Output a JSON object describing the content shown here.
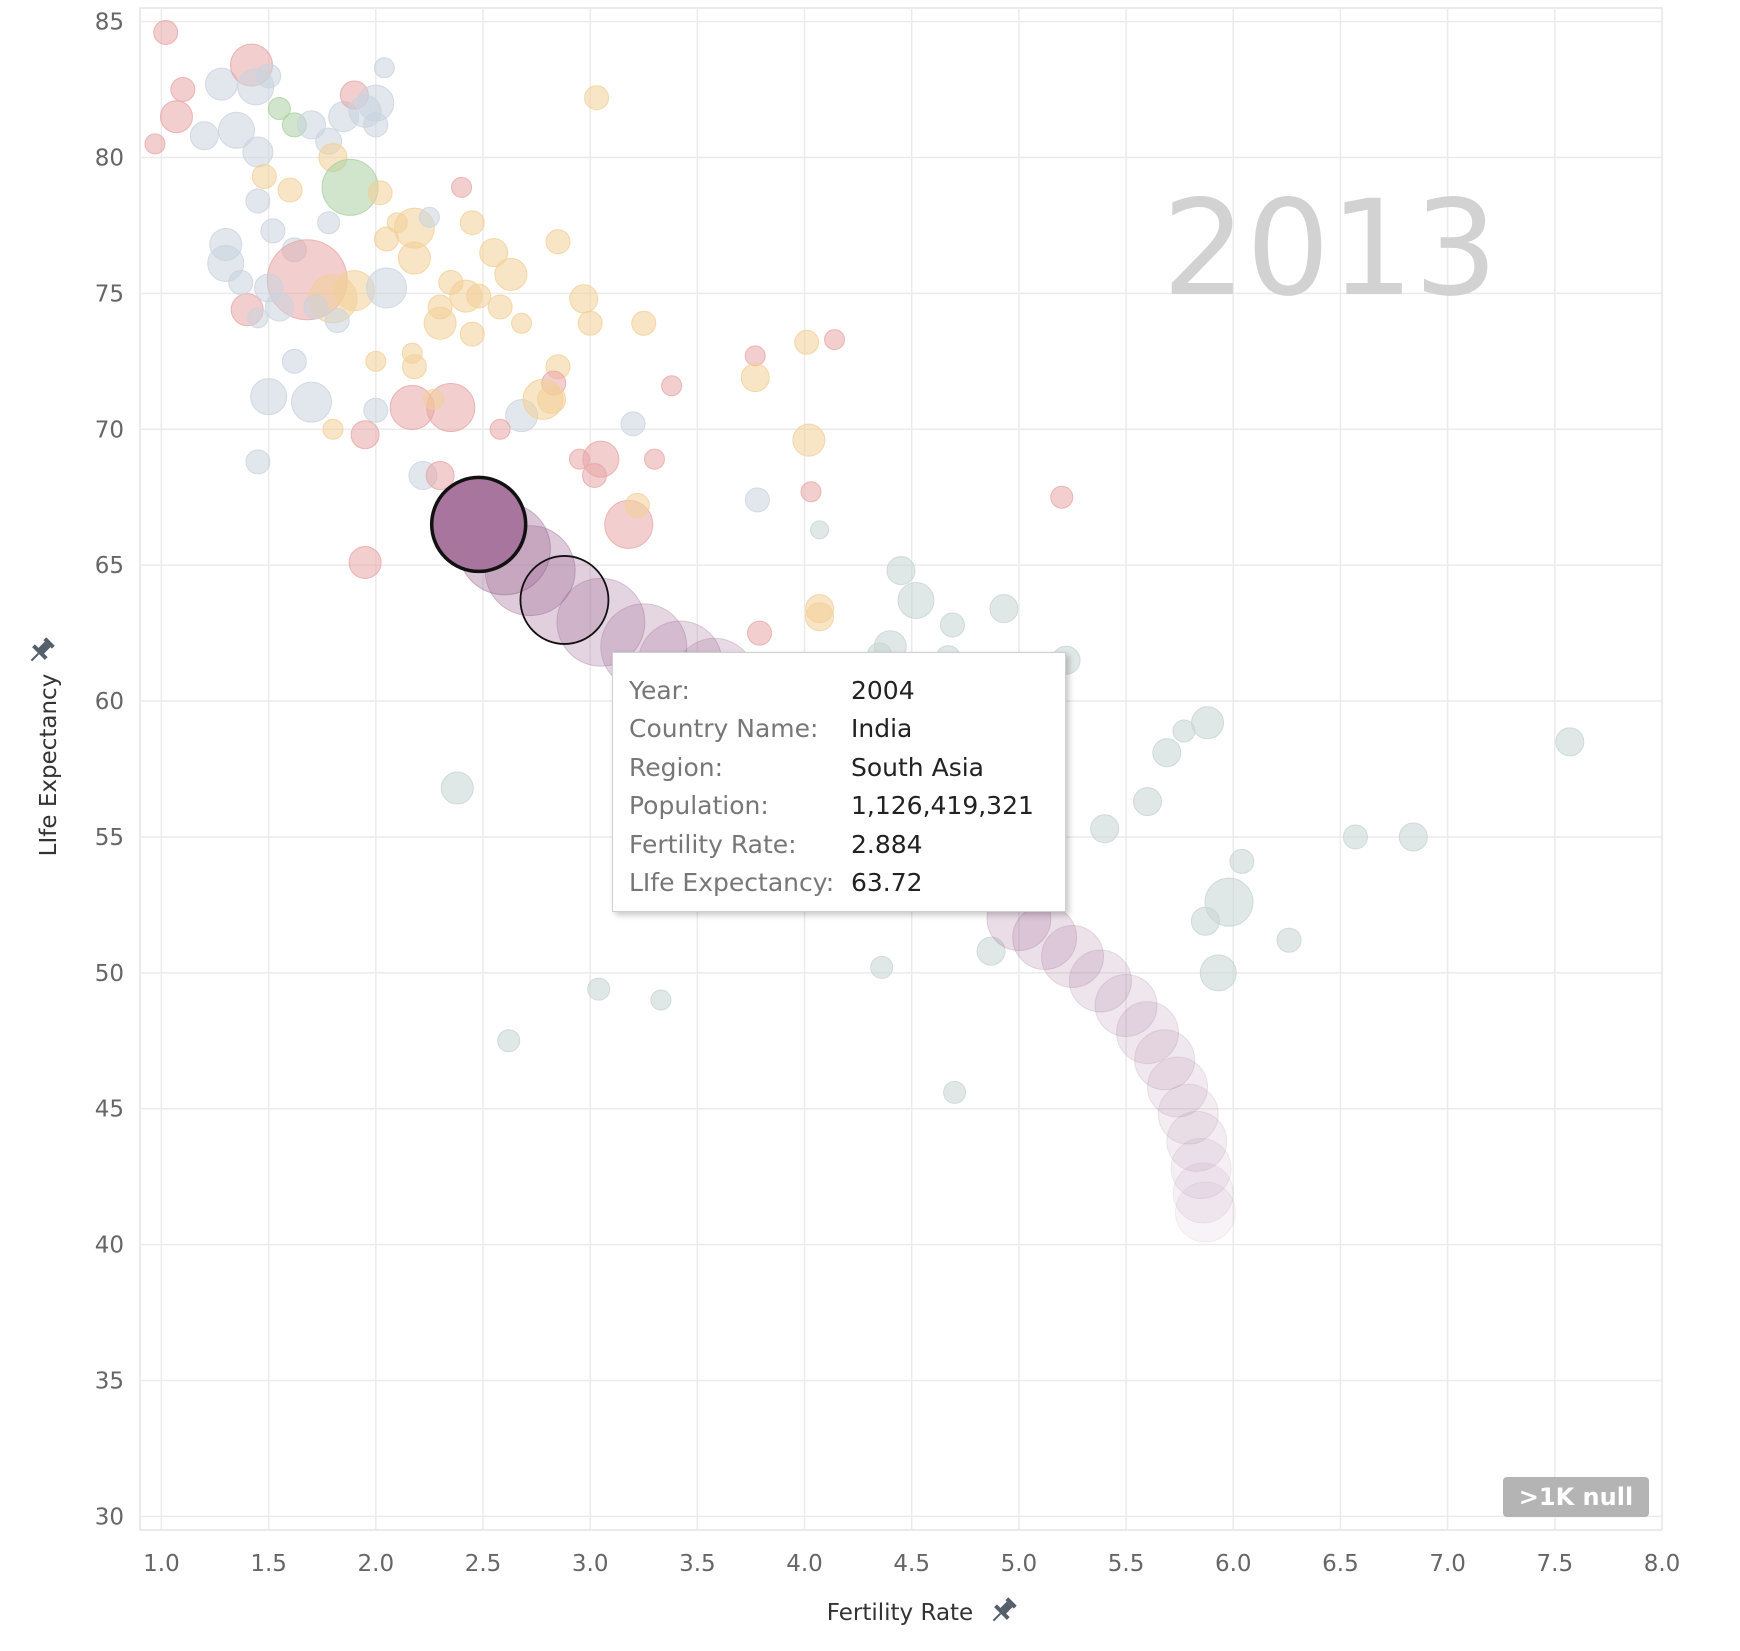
{
  "chart_data": {
    "type": "scatter",
    "title": "",
    "year_label": "2013",
    "xlabel": "Fertility Rate",
    "ylabel": "LIfe Expectancy",
    "xlim": [
      0.9,
      8.0
    ],
    "ylim": [
      29.5,
      85.5
    ],
    "x_ticks": [
      "1.0",
      "1.5",
      "2.0",
      "2.5",
      "3.0",
      "3.5",
      "4.0",
      "4.5",
      "5.0",
      "5.5",
      "6.0",
      "6.5",
      "7.0",
      "7.5",
      "8.0"
    ],
    "y_ticks": [
      "30",
      "35",
      "40",
      "45",
      "50",
      "55",
      "60",
      "65",
      "70",
      "75",
      "80",
      "85"
    ],
    "grid": true,
    "null_badge": ">1K null",
    "pin_icon": "pin-icon",
    "region_colors": {
      "South Asia": "#a8759e",
      "Europe & Central Asia": "#c9d3de",
      "Latin America & Caribbean": "#f2cf97",
      "Middle East & North Africa": "#e8a6a6",
      "Sub-Saharan Africa": "#c6d5d3",
      "East Asia & Pacific": "#c6d5d3",
      "North America": "#a9cfa0"
    },
    "india_trail": {
      "region": "South Asia",
      "points": [
        {
          "x": 2.48,
          "y": 66.5,
          "r": 47,
          "opacity": 1.0
        },
        {
          "x": 2.6,
          "y": 65.6,
          "r": 46,
          "opacity": 0.6
        },
        {
          "x": 2.72,
          "y": 64.8,
          "r": 45,
          "opacity": 0.55
        },
        {
          "x": 2.88,
          "y": 63.72,
          "r": 44,
          "opacity": 0.5
        },
        {
          "x": 3.05,
          "y": 62.9,
          "r": 44,
          "opacity": 0.45
        },
        {
          "x": 3.25,
          "y": 62.0,
          "r": 43,
          "opacity": 0.42
        },
        {
          "x": 3.42,
          "y": 61.4,
          "r": 42,
          "opacity": 0.4
        },
        {
          "x": 3.58,
          "y": 60.8,
          "r": 41,
          "opacity": 0.38
        },
        {
          "x": 5.0,
          "y": 52.0,
          "r": 32,
          "opacity": 0.35
        },
        {
          "x": 5.12,
          "y": 51.3,
          "r": 32,
          "opacity": 0.33
        },
        {
          "x": 5.25,
          "y": 50.6,
          "r": 31,
          "opacity": 0.3
        },
        {
          "x": 5.38,
          "y": 49.7,
          "r": 31,
          "opacity": 0.28
        },
        {
          "x": 5.5,
          "y": 48.8,
          "r": 31,
          "opacity": 0.26
        },
        {
          "x": 5.6,
          "y": 47.8,
          "r": 31,
          "opacity": 0.25
        },
        {
          "x": 5.68,
          "y": 46.8,
          "r": 30,
          "opacity": 0.24
        },
        {
          "x": 5.74,
          "y": 45.8,
          "r": 30,
          "opacity": 0.22
        },
        {
          "x": 5.79,
          "y": 44.8,
          "r": 30,
          "opacity": 0.2
        },
        {
          "x": 5.83,
          "y": 43.8,
          "r": 30,
          "opacity": 0.19
        },
        {
          "x": 5.85,
          "y": 42.8,
          "r": 30,
          "opacity": 0.17
        },
        {
          "x": 5.86,
          "y": 41.9,
          "r": 30,
          "opacity": 0.15
        },
        {
          "x": 5.87,
          "y": 41.2,
          "r": 30,
          "opacity": 0.13
        }
      ]
    },
    "background_points": [
      {
        "x": 1.02,
        "y": 84.6,
        "r": 12,
        "region": "Middle East & North Africa"
      },
      {
        "x": 1.1,
        "y": 82.5,
        "r": 12,
        "region": "Middle East & North Africa"
      },
      {
        "x": 1.28,
        "y": 82.7,
        "r": 16,
        "region": "Europe & Central Asia"
      },
      {
        "x": 1.42,
        "y": 83.4,
        "r": 21,
        "region": "Middle East & North Africa"
      },
      {
        "x": 1.44,
        "y": 82.6,
        "r": 18,
        "region": "Europe & Central Asia"
      },
      {
        "x": 1.5,
        "y": 83.0,
        "r": 12,
        "region": "Europe & Central Asia"
      },
      {
        "x": 1.07,
        "y": 81.5,
        "r": 16,
        "region": "Middle East & North Africa"
      },
      {
        "x": 0.97,
        "y": 80.5,
        "r": 10,
        "region": "Middle East & North Africa"
      },
      {
        "x": 1.2,
        "y": 80.8,
        "r": 14,
        "region": "Europe & Central Asia"
      },
      {
        "x": 1.35,
        "y": 81.0,
        "r": 18,
        "region": "Europe & Central Asia"
      },
      {
        "x": 1.45,
        "y": 80.2,
        "r": 15,
        "region": "Europe & Central Asia"
      },
      {
        "x": 1.55,
        "y": 81.8,
        "r": 11,
        "region": "North America"
      },
      {
        "x": 1.62,
        "y": 81.2,
        "r": 12,
        "region": "North America"
      },
      {
        "x": 1.7,
        "y": 81.2,
        "r": 14,
        "region": "Europe & Central Asia"
      },
      {
        "x": 1.78,
        "y": 80.6,
        "r": 13,
        "region": "Europe & Central Asia"
      },
      {
        "x": 1.85,
        "y": 81.5,
        "r": 15,
        "region": "Europe & Central Asia"
      },
      {
        "x": 1.9,
        "y": 82.3,
        "r": 14,
        "region": "Middle East & North Africa"
      },
      {
        "x": 1.95,
        "y": 81.7,
        "r": 16,
        "region": "Europe & Central Asia"
      },
      {
        "x": 2.0,
        "y": 81.2,
        "r": 12,
        "region": "Europe & Central Asia"
      },
      {
        "x": 2.0,
        "y": 82.0,
        "r": 18,
        "region": "Europe & Central Asia"
      },
      {
        "x": 2.04,
        "y": 83.3,
        "r": 10,
        "region": "Europe & Central Asia"
      },
      {
        "x": 1.48,
        "y": 79.3,
        "r": 12,
        "region": "Latin America & Caribbean"
      },
      {
        "x": 1.6,
        "y": 78.8,
        "r": 12,
        "region": "Latin America & Caribbean"
      },
      {
        "x": 1.8,
        "y": 80.0,
        "r": 14,
        "region": "Latin America & Caribbean"
      },
      {
        "x": 1.88,
        "y": 78.9,
        "r": 28,
        "region": "North America"
      },
      {
        "x": 2.02,
        "y": 78.7,
        "r": 12,
        "region": "Latin America & Caribbean"
      },
      {
        "x": 2.4,
        "y": 78.9,
        "r": 10,
        "region": "Middle East & North Africa"
      },
      {
        "x": 1.45,
        "y": 78.4,
        "r": 12,
        "region": "Europe & Central Asia"
      },
      {
        "x": 1.3,
        "y": 76.8,
        "r": 16,
        "region": "Europe & Central Asia"
      },
      {
        "x": 1.3,
        "y": 76.1,
        "r": 18,
        "region": "Europe & Central Asia"
      },
      {
        "x": 1.52,
        "y": 77.3,
        "r": 12,
        "region": "Europe & Central Asia"
      },
      {
        "x": 1.62,
        "y": 76.6,
        "r": 12,
        "region": "Europe & Central Asia"
      },
      {
        "x": 1.78,
        "y": 77.6,
        "r": 11,
        "region": "Europe & Central Asia"
      },
      {
        "x": 1.68,
        "y": 75.5,
        "r": 40,
        "region": "Middle East & North Africa"
      },
      {
        "x": 1.8,
        "y": 74.8,
        "r": 24,
        "region": "Latin America & Caribbean"
      },
      {
        "x": 1.9,
        "y": 75.1,
        "r": 20,
        "region": "Latin America & Caribbean"
      },
      {
        "x": 2.05,
        "y": 75.2,
        "r": 20,
        "region": "Europe & Central Asia"
      },
      {
        "x": 2.05,
        "y": 77.0,
        "r": 12,
        "region": "Latin America & Caribbean"
      },
      {
        "x": 2.18,
        "y": 77.4,
        "r": 20,
        "region": "Latin America & Caribbean"
      },
      {
        "x": 2.18,
        "y": 76.3,
        "r": 16,
        "region": "Latin America & Caribbean"
      },
      {
        "x": 2.25,
        "y": 77.8,
        "r": 10,
        "region": "Europe & Central Asia"
      },
      {
        "x": 2.45,
        "y": 77.6,
        "r": 12,
        "region": "Latin America & Caribbean"
      },
      {
        "x": 2.1,
        "y": 77.6,
        "r": 10,
        "region": "Latin America & Caribbean"
      },
      {
        "x": 2.35,
        "y": 75.4,
        "r": 12,
        "region": "Latin America & Caribbean"
      },
      {
        "x": 2.42,
        "y": 74.9,
        "r": 16,
        "region": "Latin America & Caribbean"
      },
      {
        "x": 2.55,
        "y": 76.5,
        "r": 14,
        "region": "Latin America & Caribbean"
      },
      {
        "x": 2.63,
        "y": 75.7,
        "r": 16,
        "region": "Latin America & Caribbean"
      },
      {
        "x": 2.85,
        "y": 76.9,
        "r": 12,
        "region": "Latin America & Caribbean"
      },
      {
        "x": 1.4,
        "y": 74.4,
        "r": 16,
        "region": "Middle East & North Africa"
      },
      {
        "x": 1.5,
        "y": 75.2,
        "r": 14,
        "region": "Europe & Central Asia"
      },
      {
        "x": 1.37,
        "y": 75.4,
        "r": 12,
        "region": "Europe & Central Asia"
      },
      {
        "x": 1.55,
        "y": 74.5,
        "r": 14,
        "region": "Europe & Central Asia"
      },
      {
        "x": 1.45,
        "y": 74.1,
        "r": 10,
        "region": "Europe & Central Asia"
      },
      {
        "x": 1.82,
        "y": 74.0,
        "r": 12,
        "region": "Europe & Central Asia"
      },
      {
        "x": 1.72,
        "y": 74.5,
        "r": 12,
        "region": "Europe & Central Asia"
      },
      {
        "x": 2.3,
        "y": 74.5,
        "r": 12,
        "region": "Latin America & Caribbean"
      },
      {
        "x": 2.3,
        "y": 73.9,
        "r": 16,
        "region": "Latin America & Caribbean"
      },
      {
        "x": 2.48,
        "y": 74.9,
        "r": 12,
        "region": "Latin America & Caribbean"
      },
      {
        "x": 2.58,
        "y": 74.5,
        "r": 12,
        "region": "Latin America & Caribbean"
      },
      {
        "x": 2.45,
        "y": 73.5,
        "r": 12,
        "region": "Latin America & Caribbean"
      },
      {
        "x": 2.68,
        "y": 73.9,
        "r": 10,
        "region": "Latin America & Caribbean"
      },
      {
        "x": 2.97,
        "y": 74.8,
        "r": 14,
        "region": "Latin America & Caribbean"
      },
      {
        "x": 3.0,
        "y": 73.9,
        "r": 12,
        "region": "Latin America & Caribbean"
      },
      {
        "x": 3.03,
        "y": 82.2,
        "r": 12,
        "region": "Latin America & Caribbean"
      },
      {
        "x": 3.25,
        "y": 73.9,
        "r": 12,
        "region": "Latin America & Caribbean"
      },
      {
        "x": 1.62,
        "y": 72.5,
        "r": 12,
        "region": "Europe & Central Asia"
      },
      {
        "x": 2.0,
        "y": 72.5,
        "r": 10,
        "region": "Latin America & Caribbean"
      },
      {
        "x": 2.17,
        "y": 72.8,
        "r": 10,
        "region": "Latin America & Caribbean"
      },
      {
        "x": 2.18,
        "y": 72.3,
        "r": 12,
        "region": "Latin America & Caribbean"
      },
      {
        "x": 2.85,
        "y": 72.3,
        "r": 12,
        "region": "Latin America & Caribbean"
      },
      {
        "x": 2.83,
        "y": 71.7,
        "r": 12,
        "region": "Middle East & North Africa"
      },
      {
        "x": 3.77,
        "y": 72.7,
        "r": 10,
        "region": "Middle East & North Africa"
      },
      {
        "x": 3.77,
        "y": 71.9,
        "r": 14,
        "region": "Latin America & Caribbean"
      },
      {
        "x": 4.01,
        "y": 73.2,
        "r": 12,
        "region": "Latin America & Caribbean"
      },
      {
        "x": 4.14,
        "y": 73.3,
        "r": 10,
        "region": "Middle East & North Africa"
      },
      {
        "x": 3.38,
        "y": 71.6,
        "r": 10,
        "region": "Middle East & North Africa"
      },
      {
        "x": 1.5,
        "y": 71.2,
        "r": 18,
        "region": "Europe & Central Asia"
      },
      {
        "x": 1.7,
        "y": 71.0,
        "r": 20,
        "region": "Europe & Central Asia"
      },
      {
        "x": 2.0,
        "y": 70.7,
        "r": 12,
        "region": "Europe & Central Asia"
      },
      {
        "x": 2.17,
        "y": 70.8,
        "r": 22,
        "region": "Middle East & North Africa"
      },
      {
        "x": 2.35,
        "y": 70.8,
        "r": 24,
        "region": "Middle East & North Africa"
      },
      {
        "x": 2.27,
        "y": 71.1,
        "r": 10,
        "region": "Latin America & Caribbean"
      },
      {
        "x": 2.68,
        "y": 70.5,
        "r": 16,
        "region": "Europe & Central Asia"
      },
      {
        "x": 2.78,
        "y": 71.1,
        "r": 20,
        "region": "Latin America & Caribbean"
      },
      {
        "x": 2.82,
        "y": 71.1,
        "r": 14,
        "region": "Latin America & Caribbean"
      },
      {
        "x": 2.58,
        "y": 70.0,
        "r": 10,
        "region": "Middle East & North Africa"
      },
      {
        "x": 1.8,
        "y": 70.0,
        "r": 10,
        "region": "Latin America & Caribbean"
      },
      {
        "x": 1.95,
        "y": 69.8,
        "r": 14,
        "region": "Middle East & North Africa"
      },
      {
        "x": 3.2,
        "y": 70.2,
        "r": 12,
        "region": "Europe & Central Asia"
      },
      {
        "x": 4.02,
        "y": 69.6,
        "r": 16,
        "region": "Latin America & Caribbean"
      },
      {
        "x": 1.45,
        "y": 68.8,
        "r": 12,
        "region": "Europe & Central Asia"
      },
      {
        "x": 2.95,
        "y": 68.9,
        "r": 10,
        "region": "Middle East & North Africa"
      },
      {
        "x": 3.05,
        "y": 68.9,
        "r": 18,
        "region": "Middle East & North Africa"
      },
      {
        "x": 3.02,
        "y": 68.3,
        "r": 12,
        "region": "Middle East & North Africa"
      },
      {
        "x": 3.3,
        "y": 68.9,
        "r": 10,
        "region": "Middle East & North Africa"
      },
      {
        "x": 2.22,
        "y": 68.3,
        "r": 14,
        "region": "Europe & Central Asia"
      },
      {
        "x": 2.3,
        "y": 68.3,
        "r": 14,
        "region": "Middle East & North Africa"
      },
      {
        "x": 3.78,
        "y": 67.4,
        "r": 12,
        "region": "Europe & Central Asia"
      },
      {
        "x": 4.03,
        "y": 67.7,
        "r": 10,
        "region": "Middle East & North Africa"
      },
      {
        "x": 5.2,
        "y": 67.5,
        "r": 11,
        "region": "Middle East & North Africa"
      },
      {
        "x": 3.18,
        "y": 66.5,
        "r": 24,
        "region": "Middle East & North Africa"
      },
      {
        "x": 3.22,
        "y": 67.2,
        "r": 12,
        "region": "Latin America & Caribbean"
      },
      {
        "x": 4.07,
        "y": 66.3,
        "r": 9,
        "region": "East Asia & Pacific"
      },
      {
        "x": 1.95,
        "y": 65.1,
        "r": 16,
        "region": "Middle East & North Africa"
      },
      {
        "x": 4.45,
        "y": 64.8,
        "r": 14,
        "region": "East Asia & Pacific"
      },
      {
        "x": 4.52,
        "y": 63.7,
        "r": 18,
        "region": "East Asia & Pacific"
      },
      {
        "x": 4.93,
        "y": 63.4,
        "r": 14,
        "region": "East Asia & Pacific"
      },
      {
        "x": 4.69,
        "y": 62.8,
        "r": 12,
        "region": "East Asia & Pacific"
      },
      {
        "x": 4.07,
        "y": 63.4,
        "r": 14,
        "region": "Latin America & Caribbean"
      },
      {
        "x": 4.07,
        "y": 63.1,
        "r": 14,
        "region": "Latin America & Caribbean"
      },
      {
        "x": 3.79,
        "y": 62.5,
        "r": 12,
        "region": "Middle East & North Africa"
      },
      {
        "x": 4.4,
        "y": 62.0,
        "r": 16,
        "region": "East Asia & Pacific"
      },
      {
        "x": 4.35,
        "y": 61.7,
        "r": 12,
        "region": "East Asia & Pacific"
      },
      {
        "x": 4.67,
        "y": 61.6,
        "r": 12,
        "region": "East Asia & Pacific"
      },
      {
        "x": 5.22,
        "y": 61.5,
        "r": 14,
        "region": "East Asia & Pacific"
      },
      {
        "x": 5.88,
        "y": 59.2,
        "r": 16,
        "region": "Sub-Saharan Africa"
      },
      {
        "x": 5.77,
        "y": 58.9,
        "r": 11,
        "region": "Sub-Saharan Africa"
      },
      {
        "x": 5.69,
        "y": 58.1,
        "r": 14,
        "region": "Sub-Saharan Africa"
      },
      {
        "x": 7.57,
        "y": 58.5,
        "r": 14,
        "region": "Sub-Saharan Africa"
      },
      {
        "x": 2.38,
        "y": 56.8,
        "r": 16,
        "region": "Sub-Saharan Africa"
      },
      {
        "x": 5.6,
        "y": 56.3,
        "r": 14,
        "region": "Sub-Saharan Africa"
      },
      {
        "x": 5.4,
        "y": 55.3,
        "r": 14,
        "region": "Sub-Saharan Africa"
      },
      {
        "x": 6.57,
        "y": 55.0,
        "r": 12,
        "region": "Sub-Saharan Africa"
      },
      {
        "x": 6.84,
        "y": 55.0,
        "r": 14,
        "region": "Sub-Saharan Africa"
      },
      {
        "x": 6.04,
        "y": 54.1,
        "r": 12,
        "region": "Sub-Saharan Africa"
      },
      {
        "x": 5.98,
        "y": 52.6,
        "r": 24,
        "region": "Sub-Saharan Africa"
      },
      {
        "x": 5.87,
        "y": 51.9,
        "r": 14,
        "region": "Sub-Saharan Africa"
      },
      {
        "x": 6.26,
        "y": 51.2,
        "r": 12,
        "region": "Sub-Saharan Africa"
      },
      {
        "x": 4.87,
        "y": 50.8,
        "r": 14,
        "region": "Sub-Saharan Africa"
      },
      {
        "x": 5.93,
        "y": 50.0,
        "r": 18,
        "region": "Sub-Saharan Africa"
      },
      {
        "x": 4.36,
        "y": 50.2,
        "r": 11,
        "region": "Sub-Saharan Africa"
      },
      {
        "x": 3.04,
        "y": 49.4,
        "r": 11,
        "region": "Sub-Saharan Africa"
      },
      {
        "x": 3.33,
        "y": 49.0,
        "r": 10,
        "region": "Sub-Saharan Africa"
      },
      {
        "x": 2.62,
        "y": 47.5,
        "r": 11,
        "region": "Sub-Saharan Africa"
      },
      {
        "x": 4.7,
        "y": 45.6,
        "r": 11,
        "region": "Sub-Saharan Africa"
      }
    ]
  },
  "tooltip": {
    "rows": [
      {
        "key": "Year:",
        "value": "2004"
      },
      {
        "key": "Country Name:",
        "value": "India"
      },
      {
        "key": "Region:",
        "value": "South Asia"
      },
      {
        "key": "Population:",
        "value": "1,126,419,321"
      },
      {
        "key": "Fertility Rate:",
        "value": "2.884"
      },
      {
        "key": "LIfe Expectancy:",
        "value": "63.72"
      }
    ]
  }
}
